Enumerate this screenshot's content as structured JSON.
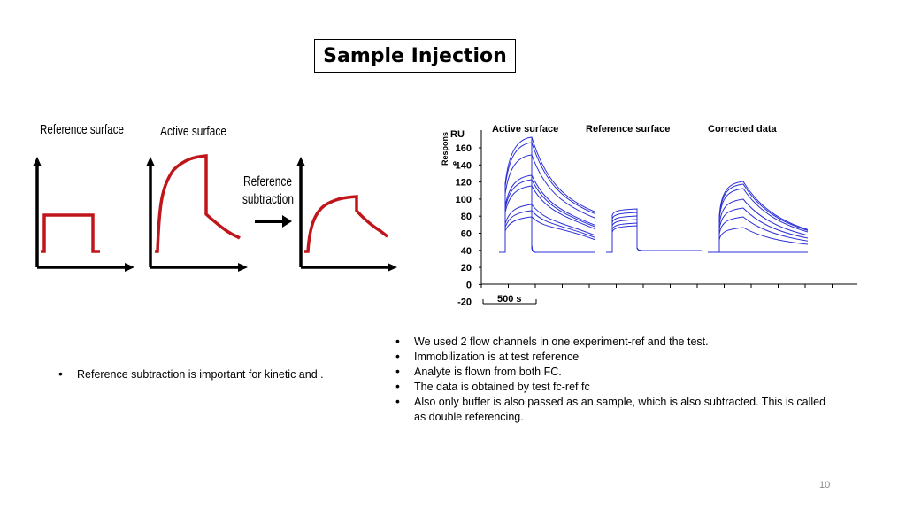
{
  "slide": {
    "title": "Sample Injection",
    "page_number": "10"
  },
  "left_figure": {
    "label_reference": "Reference surface",
    "label_active": "Active surface",
    "label_subtraction_line1": "Reference",
    "label_subtraction_line2": "subtraction",
    "curve_color": "#c0161b"
  },
  "right_figure": {
    "header_active": "Active surface",
    "header_reference": "Reference surface",
    "header_corrected": "Corrected data",
    "unit": "RU",
    "ylabel_line1": "Respons",
    "ylabel_line2": "e",
    "yticks": [
      "160",
      "140",
      "120",
      "100",
      "80",
      "60",
      "40",
      "20",
      "0",
      "-20"
    ],
    "scale_bar": "500 s",
    "curve_color": "#2b2fd6"
  },
  "left_bullets": [
    "Reference subtraction is important for kinetic and ."
  ],
  "right_bullets": [
    "We used 2 flow channels in one experiment-ref and the test.",
    "Immobilization is at test reference",
    "Analyte is flown from both FC.",
    "The data is obtained by test fc-ref fc",
    "Also only buffer is also passed as an sample, which is also subtracted. This is called as double referencing."
  ]
}
